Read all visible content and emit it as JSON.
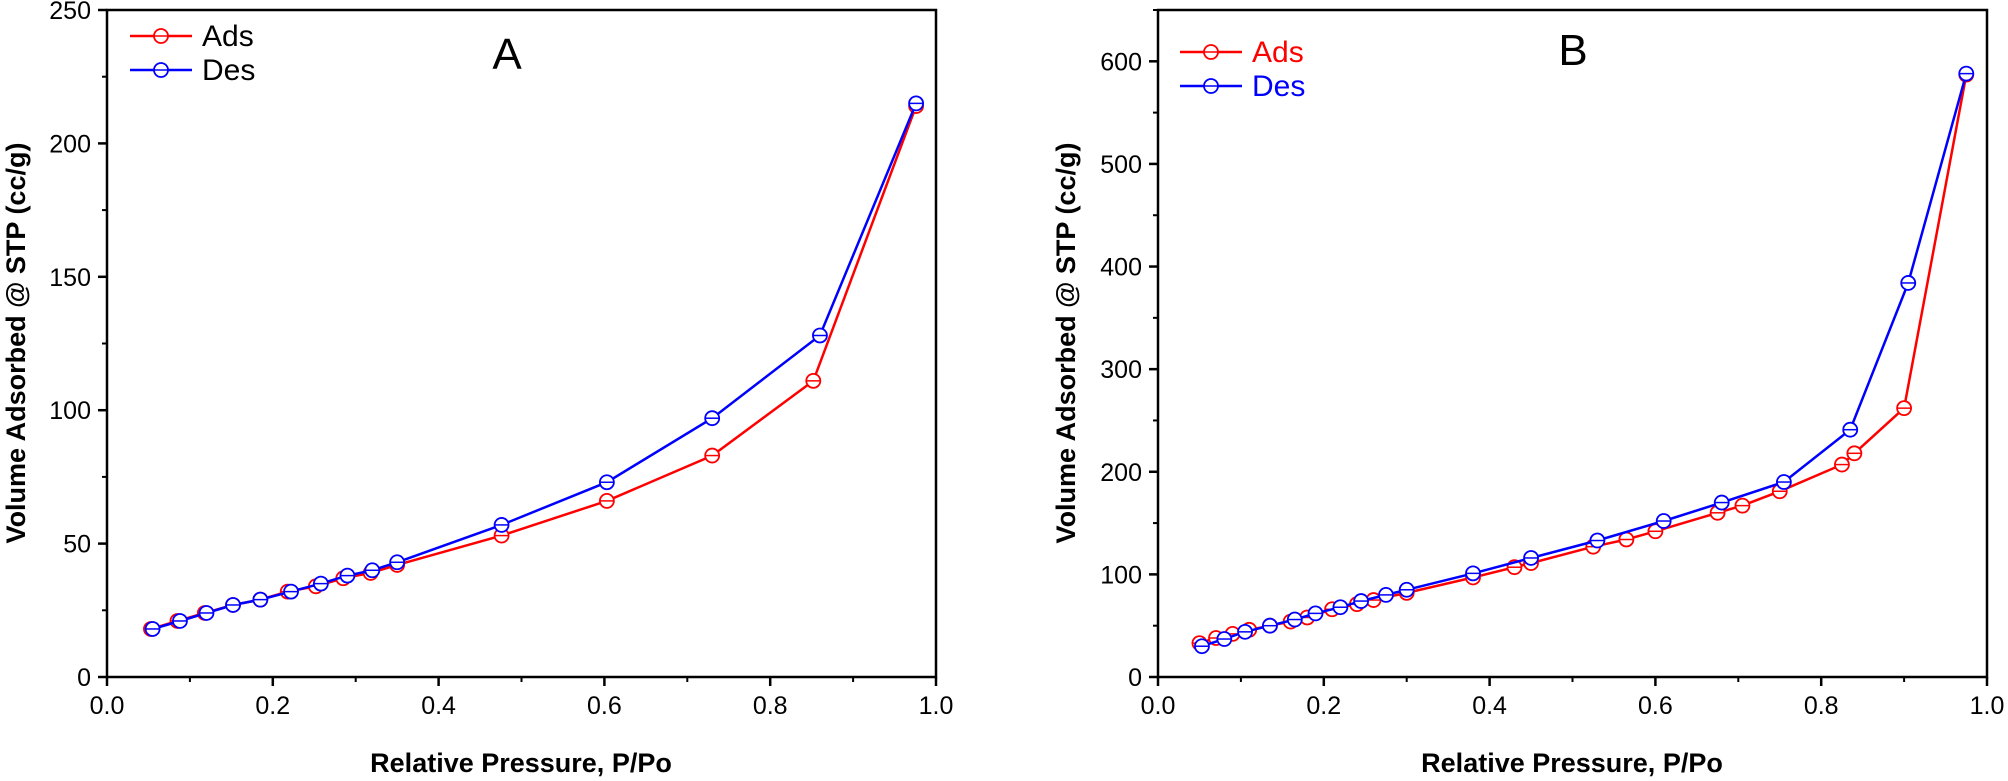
{
  "chart_data": [
    {
      "type": "line",
      "panel_label": "A",
      "xlabel": "Relative Pressure, P/Po",
      "ylabel": "Volume Adsorbed @ STP (cc/g)",
      "xlim": [
        0.0,
        1.0
      ],
      "ylim": [
        0,
        250
      ],
      "x_ticks": [
        "0.0",
        "0.2",
        "0.4",
        "0.6",
        "0.8",
        "1.0"
      ],
      "y_ticks": [
        "0",
        "50",
        "100",
        "150",
        "200",
        "250"
      ],
      "legend_position": "top-left",
      "series": [
        {
          "name": "Ads",
          "color": "#ff0000",
          "legend_text_color": "#000000",
          "x": [
            0.053,
            0.085,
            0.118,
            0.152,
            0.185,
            0.218,
            0.252,
            0.285,
            0.318,
            0.35,
            0.476,
            0.603,
            0.73,
            0.852,
            0.976
          ],
          "y": [
            18,
            21,
            24,
            27,
            29,
            32,
            34,
            37,
            39,
            42,
            53,
            66,
            83,
            111,
            214
          ]
        },
        {
          "name": "Des",
          "color": "#0000ff",
          "legend_text_color": "#000000",
          "x": [
            0.976,
            0.86,
            0.73,
            0.603,
            0.476,
            0.35,
            0.32,
            0.29,
            0.258,
            0.222,
            0.185,
            0.152,
            0.12,
            0.088,
            0.055
          ],
          "y": [
            215,
            128,
            97,
            73,
            57,
            43,
            40,
            38,
            35,
            32,
            29,
            27,
            24,
            21,
            18
          ]
        }
      ]
    },
    {
      "type": "line",
      "panel_label": "B",
      "xlabel": "Relative Pressure, P/Po",
      "ylabel": "Volume Adsorbed @ STP (cc/g)",
      "xlim": [
        0.0,
        1.0
      ],
      "ylim": [
        0,
        650
      ],
      "x_ticks": [
        "0.0",
        "0.2",
        "0.4",
        "0.6",
        "0.8",
        "1.0"
      ],
      "y_ticks": [
        "0",
        "100",
        "200",
        "300",
        "400",
        "500",
        "600"
      ],
      "legend_position": "top-left",
      "series": [
        {
          "name": "Ads",
          "color": "#ff0000",
          "legend_text_color": "#ff0000",
          "x": [
            0.05,
            0.07,
            0.09,
            0.11,
            0.135,
            0.16,
            0.18,
            0.21,
            0.24,
            0.26,
            0.3,
            0.38,
            0.43,
            0.45,
            0.525,
            0.565,
            0.6,
            0.675,
            0.705,
            0.75,
            0.825,
            0.84,
            0.9,
            0.975
          ],
          "y": [
            33,
            38,
            42,
            46,
            50,
            54,
            58,
            66,
            71,
            75,
            82,
            97,
            107,
            111,
            127,
            134,
            142,
            160,
            167,
            181,
            207,
            218,
            262,
            587
          ]
        },
        {
          "name": "Des",
          "color": "#0000ff",
          "legend_text_color": "#0000ff",
          "x": [
            0.975,
            0.905,
            0.835,
            0.755,
            0.68,
            0.61,
            0.53,
            0.45,
            0.38,
            0.3,
            0.275,
            0.245,
            0.22,
            0.19,
            0.165,
            0.135,
            0.105,
            0.08,
            0.053
          ],
          "y": [
            588,
            384,
            241,
            190,
            170,
            152,
            133,
            116,
            101,
            85,
            80,
            74,
            68,
            62,
            56,
            50,
            44,
            37,
            30
          ]
        }
      ]
    }
  ]
}
